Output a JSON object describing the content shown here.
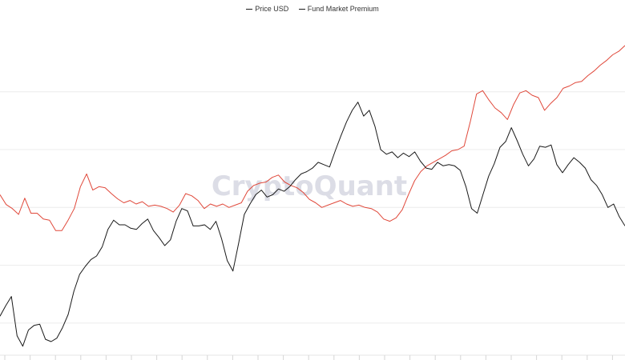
{
  "chart_data": {
    "type": "line",
    "legend_position": "top-center",
    "grid": "horizontal",
    "watermark": "CryptoQuant",
    "colors": {
      "price": "#1a1a1a",
      "premium": "#e0483a",
      "grid": "#ececec",
      "watermark": "#dcdde6"
    },
    "series": [
      {
        "name": "Price USD",
        "color": "#1a1a1a",
        "values": [
          -0.38,
          -0.2,
          -0.04,
          -0.72,
          -0.9,
          -0.62,
          -0.54,
          -0.52,
          -0.78,
          -0.82,
          -0.76,
          -0.58,
          -0.35,
          0.05,
          0.34,
          0.48,
          0.6,
          0.66,
          0.82,
          1.12,
          1.28,
          1.2,
          1.2,
          1.14,
          1.12,
          1.22,
          1.3,
          1.1,
          0.98,
          0.84,
          0.94,
          1.26,
          1.48,
          1.44,
          1.18,
          1.18,
          1.2,
          1.12,
          1.26,
          0.96,
          0.58,
          0.4,
          0.88,
          1.38,
          1.56,
          1.72,
          1.8,
          1.68,
          1.72,
          1.82,
          1.78,
          1.86,
          1.98,
          2.08,
          2.12,
          2.18,
          2.28,
          2.24,
          2.2,
          2.48,
          2.74,
          2.98,
          3.18,
          3.32,
          3.08,
          3.18,
          2.9,
          2.5,
          2.42,
          2.46,
          2.36,
          2.44,
          2.38,
          2.46,
          2.3,
          2.18,
          2.16,
          2.28,
          2.22,
          2.24,
          2.22,
          2.14,
          1.86,
          1.48,
          1.4,
          1.72,
          2.04,
          2.26,
          2.54,
          2.64,
          2.88,
          2.66,
          2.42,
          2.22,
          2.34,
          2.56,
          2.54,
          2.58,
          2.24,
          2.1,
          2.24,
          2.36,
          2.28,
          2.18,
          1.98,
          1.88,
          1.72,
          1.5,
          1.56,
          1.34,
          1.18
        ]
      },
      {
        "name": "Fund Market Premium",
        "color": "#e0483a",
        "values": [
          1.72,
          1.55,
          1.48,
          1.38,
          1.66,
          1.4,
          1.4,
          1.3,
          1.28,
          1.1,
          1.1,
          1.28,
          1.48,
          1.86,
          2.08,
          1.8,
          1.86,
          1.84,
          1.74,
          1.65,
          1.58,
          1.62,
          1.56,
          1.6,
          1.52,
          1.54,
          1.52,
          1.48,
          1.42,
          1.54,
          1.74,
          1.7,
          1.62,
          1.48,
          1.56,
          1.52,
          1.56,
          1.5,
          1.54,
          1.58,
          1.78,
          1.88,
          1.92,
          1.94,
          2.02,
          2.06,
          1.94,
          1.88,
          1.84,
          1.76,
          1.64,
          1.58,
          1.5,
          1.54,
          1.58,
          1.62,
          1.56,
          1.52,
          1.54,
          1.5,
          1.48,
          1.42,
          1.3,
          1.26,
          1.32,
          1.46,
          1.72,
          1.96,
          2.12,
          2.22,
          2.28,
          2.34,
          2.4,
          2.48,
          2.5,
          2.56,
          2.98,
          3.46,
          3.52,
          3.36,
          3.22,
          3.14,
          3.02,
          3.28,
          3.48,
          3.52,
          3.44,
          3.4,
          3.18,
          3.3,
          3.4,
          3.56,
          3.6,
          3.66,
          3.68,
          3.78,
          3.86,
          3.96,
          4.04,
          4.14,
          4.2,
          4.3
        ]
      }
    ]
  }
}
